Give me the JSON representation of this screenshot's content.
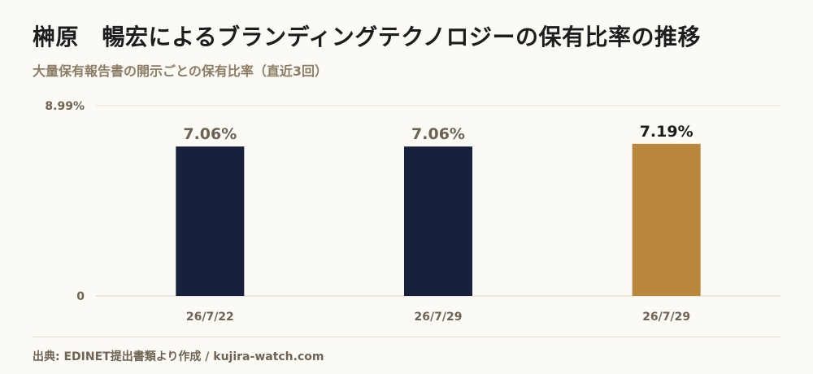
{
  "title": "榊原　暢宏によるブランディングテクノロジーの保有比率の推移",
  "subtitle": "大量保有報告書の開示ごとの保有比率（直近3回）",
  "source": "出典: EDINET提出書類より作成 / kujira-watch.com",
  "chart_data": {
    "type": "bar",
    "categories": [
      "26/7/22",
      "26/7/29",
      "26/7/29"
    ],
    "values": [
      7.06,
      7.06,
      7.19
    ],
    "value_labels": [
      "7.06%",
      "7.06%",
      "7.19%"
    ],
    "ylim": [
      0,
      8.99
    ],
    "ytick_labels": [
      "0",
      "8.99%"
    ],
    "grid": true,
    "colors": [
      "#17213b",
      "#17213b",
      "#b8873c"
    ],
    "label_colors": [
      "#6b6253",
      "#6b6253",
      "#1d1d1d"
    ]
  }
}
